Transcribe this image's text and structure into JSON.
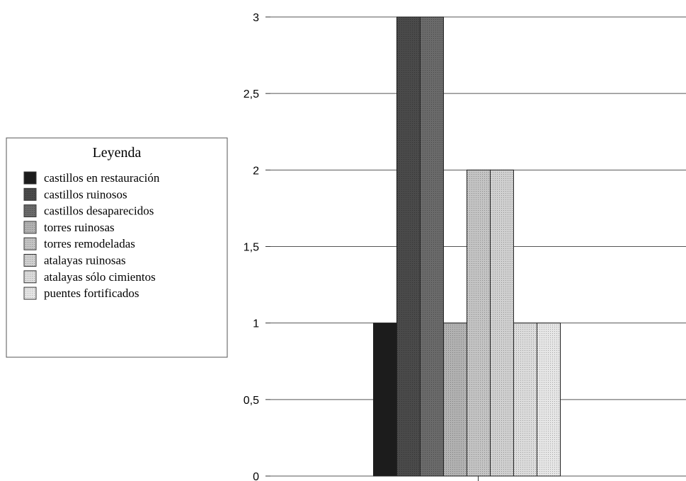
{
  "chart_data": {
    "type": "bar",
    "title": "",
    "xlabel": "",
    "ylabel": "",
    "ylim": [
      0,
      3
    ],
    "y_ticks": [
      0,
      0.5,
      1,
      1.5,
      2,
      2.5,
      3
    ],
    "y_tick_labels": [
      "0",
      "0,5",
      "1",
      "1,5",
      "2",
      "2,5",
      "3"
    ],
    "grid": true,
    "legend_position": "left",
    "legend_title": "Leyenda",
    "series": [
      {
        "name": "castillos en restauración",
        "value": 1,
        "color": "#1c1c1c"
      },
      {
        "name": "castillos ruinosos",
        "value": 3,
        "color": "#4a4a4a"
      },
      {
        "name": "castillos desaparecidos",
        "value": 3,
        "color": "#6a6a6a"
      },
      {
        "name": "torres ruinosas",
        "value": 1,
        "color": "#b2b2b2"
      },
      {
        "name": "torres remodeladas",
        "value": 2,
        "color": "#c4c4c4"
      },
      {
        "name": "atalayas ruinosas",
        "value": 2,
        "color": "#d0d0d0"
      },
      {
        "name": "atalayas sólo cimientos",
        "value": 1,
        "color": "#dcdcdc"
      },
      {
        "name": "puentes fortificados",
        "value": 1,
        "color": "#e6e6e6"
      }
    ]
  }
}
